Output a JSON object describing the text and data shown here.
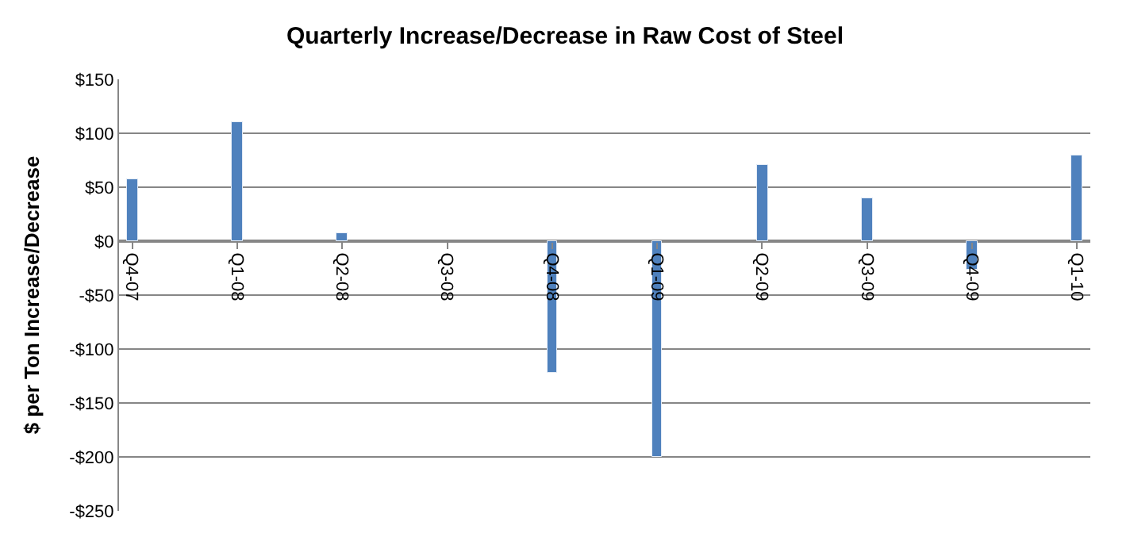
{
  "chart_data": {
    "type": "bar",
    "title": "Quarterly Increase/Decrease in Raw Cost of Steel",
    "ylabel": "$ per Ton Increase/Decrease",
    "categories": [
      "Q4-07",
      null,
      null,
      null,
      "Q1-08",
      null,
      null,
      null,
      "Q2-08",
      null,
      null,
      null,
      "Q3-08",
      null,
      null,
      null,
      "Q4-08",
      null,
      null,
      null,
      "Q1-09",
      null,
      null,
      null,
      "Q2-09",
      null,
      null,
      null,
      "Q3-09",
      null,
      null,
      null,
      "Q4-09",
      null,
      null,
      null,
      "Q1-10"
    ],
    "values": [
      57,
      null,
      null,
      null,
      111,
      null,
      null,
      null,
      7,
      null,
      null,
      null,
      null,
      null,
      null,
      null,
      -122,
      null,
      null,
      null,
      -200,
      null,
      null,
      null,
      70,
      null,
      null,
      null,
      39,
      null,
      null,
      null,
      -26,
      null,
      null,
      null,
      79
    ],
    "color": "#4f81bd",
    "ylim": [
      -250,
      150
    ],
    "yticks": [
      {
        "value": -250,
        "label": "-$250"
      },
      {
        "value": -200,
        "label": "-$200"
      },
      {
        "value": -150,
        "label": "-$150"
      },
      {
        "value": -100,
        "label": "-$100"
      },
      {
        "value": -50,
        "label": "-$50"
      },
      {
        "value": 0,
        "label": "$0"
      },
      {
        "value": 50,
        "label": "$50"
      },
      {
        "value": 100,
        "label": "$100"
      },
      {
        "value": 150,
        "label": "$150"
      }
    ],
    "grid": "y",
    "legend": false
  }
}
